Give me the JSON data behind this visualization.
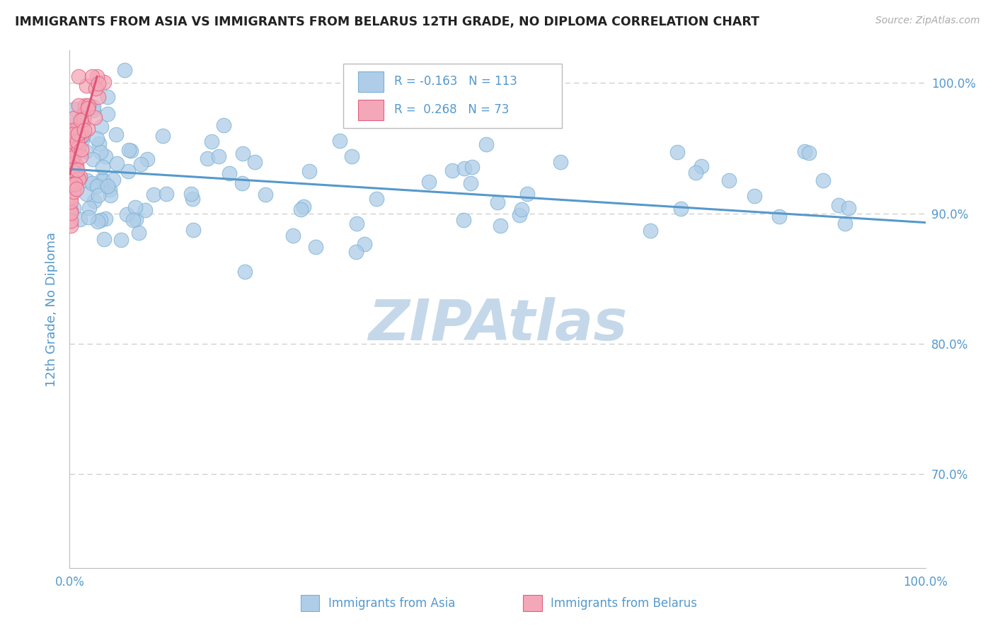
{
  "title": "IMMIGRANTS FROM ASIA VS IMMIGRANTS FROM BELARUS 12TH GRADE, NO DIPLOMA CORRELATION CHART",
  "source": "Source: ZipAtlas.com",
  "ylabel": "12th Grade, No Diploma",
  "legend_r_asia": "-0.163",
  "legend_n_asia": "113",
  "legend_r_belarus": "0.268",
  "legend_n_belarus": "73",
  "color_asia": "#aecde8",
  "color_asia_edge": "#7ab0d4",
  "color_belarus": "#f4a7b8",
  "color_belarus_edge": "#e06080",
  "color_line_asia": "#5599cc",
  "color_line_belarus": "#dd5577",
  "title_color": "#222222",
  "source_color": "#aaaaaa",
  "label_color": "#5599cc",
  "axis_color": "#bbbbbb",
  "grid_color": "#cccccc",
  "watermark_color": "#c5d8ea",
  "xlim": [
    0,
    1
  ],
  "ylim": [
    0.628,
    1.025
  ],
  "asia_trend_x": [
    0.0,
    1.0
  ],
  "asia_trend_y": [
    0.934,
    0.893
  ],
  "belarus_trend_x": [
    0.0,
    0.032
  ],
  "belarus_trend_y": [
    0.93,
    1.005
  ]
}
